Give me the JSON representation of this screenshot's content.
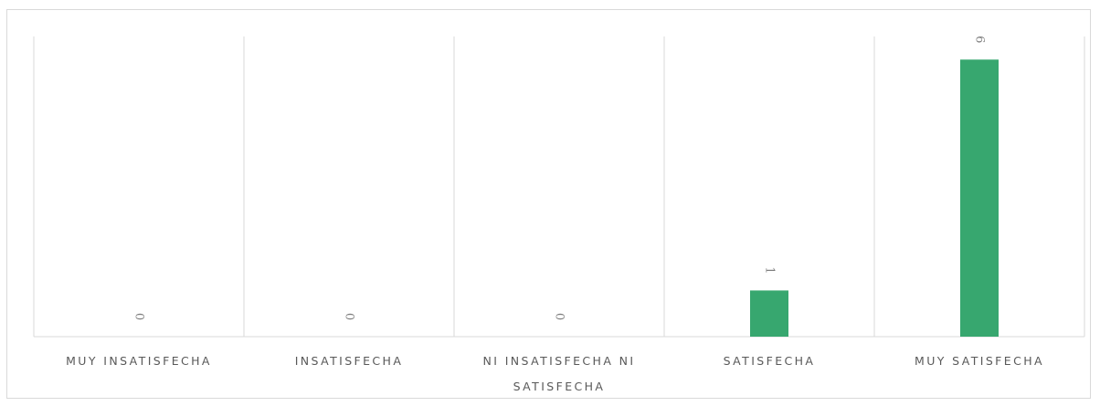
{
  "colors": {
    "bar": "#37a76f",
    "grid": "#d9d9d9",
    "label": "#595959",
    "data_label": "#7f7f7f"
  },
  "chart_data": {
    "type": "bar",
    "title": "",
    "xlabel": "",
    "ylabel": "",
    "categories": [
      [
        "MUY INSATISFECHA"
      ],
      [
        "INSATISFECHA"
      ],
      [
        "NI INSATISFECHA NI",
        "SATISFECHA"
      ],
      [
        "SATISFECHA"
      ],
      [
        "MUY SATISFECHA"
      ]
    ],
    "values": [
      0,
      0,
      0,
      1,
      6
    ],
    "ylim": [
      0,
      6.5
    ],
    "grid": "vertical category separators",
    "legend": "none",
    "data_labels": true
  }
}
